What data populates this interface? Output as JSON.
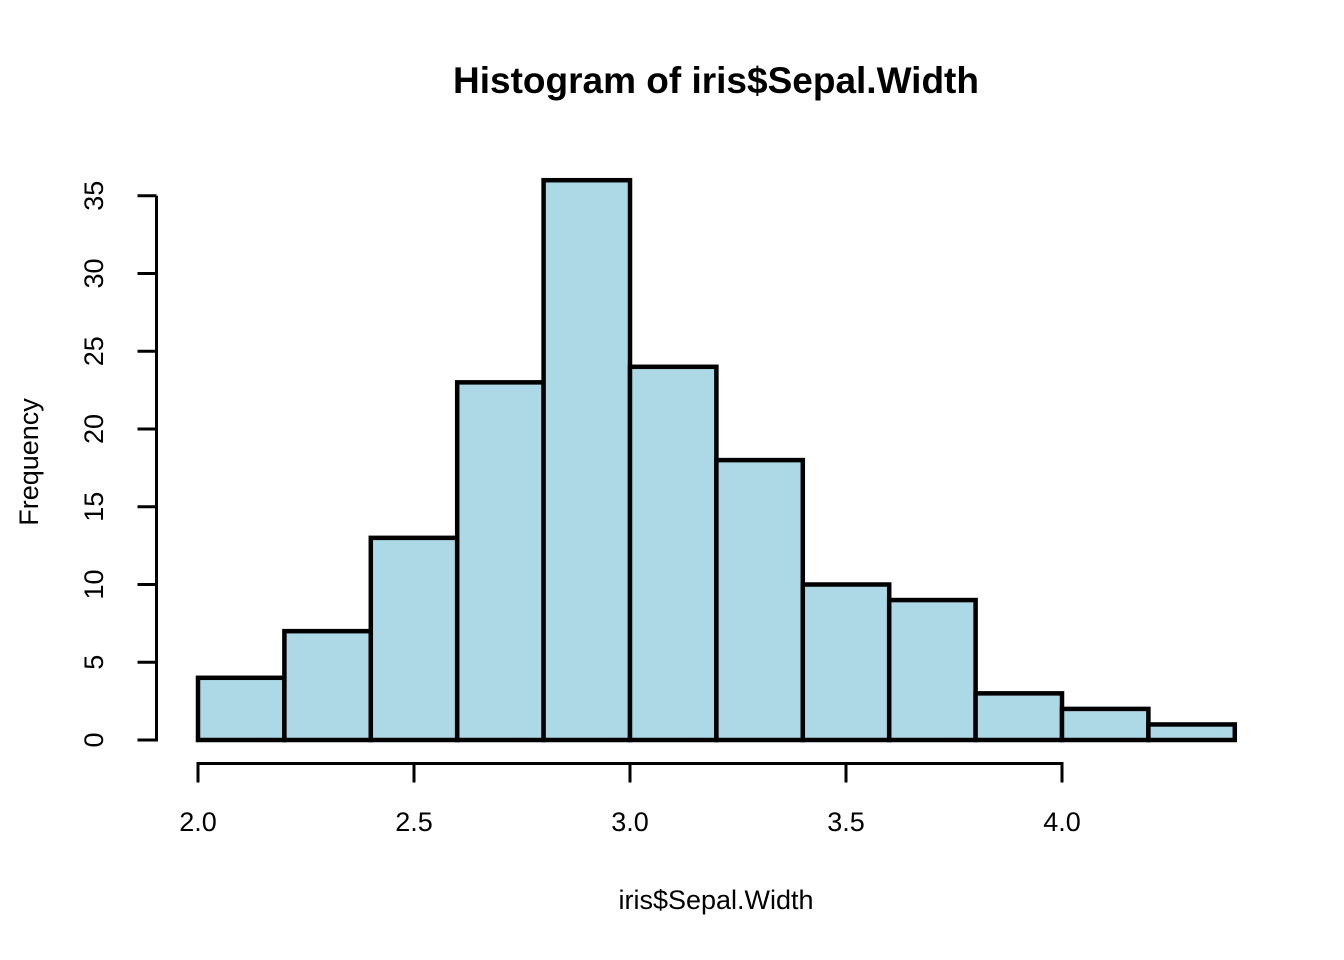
{
  "chart_data": {
    "type": "bar",
    "subtype": "histogram",
    "title": "Histogram of iris$Sepal.Width",
    "xlabel": "iris$Sepal.Width",
    "ylabel": "Frequency",
    "breaks": [
      2.0,
      2.2,
      2.4,
      2.6,
      2.8,
      3.0,
      3.2,
      3.4,
      3.6,
      3.8,
      4.0,
      4.2,
      4.4
    ],
    "counts": [
      4,
      7,
      13,
      23,
      36,
      24,
      18,
      10,
      9,
      3,
      2,
      1
    ],
    "xlim": [
      2.0,
      4.4
    ],
    "ylim": [
      0,
      36
    ],
    "x_ticks": {
      "values": [
        2.0,
        2.5,
        3.0,
        3.5,
        4.0
      ],
      "labels": [
        "2.0",
        "2.5",
        "3.0",
        "3.5",
        "4.0"
      ]
    },
    "y_ticks": {
      "values": [
        0,
        5,
        10,
        15,
        20,
        25,
        30,
        35
      ],
      "labels": [
        "0",
        "5",
        "10",
        "15",
        "20",
        "25",
        "30",
        "35"
      ]
    },
    "grid": false,
    "legend": null,
    "colors": {
      "bar_fill": "#ADD8E6",
      "bar_stroke": "#000000",
      "axis": "#000000",
      "text": "#000000",
      "background": "#FFFFFF"
    }
  }
}
